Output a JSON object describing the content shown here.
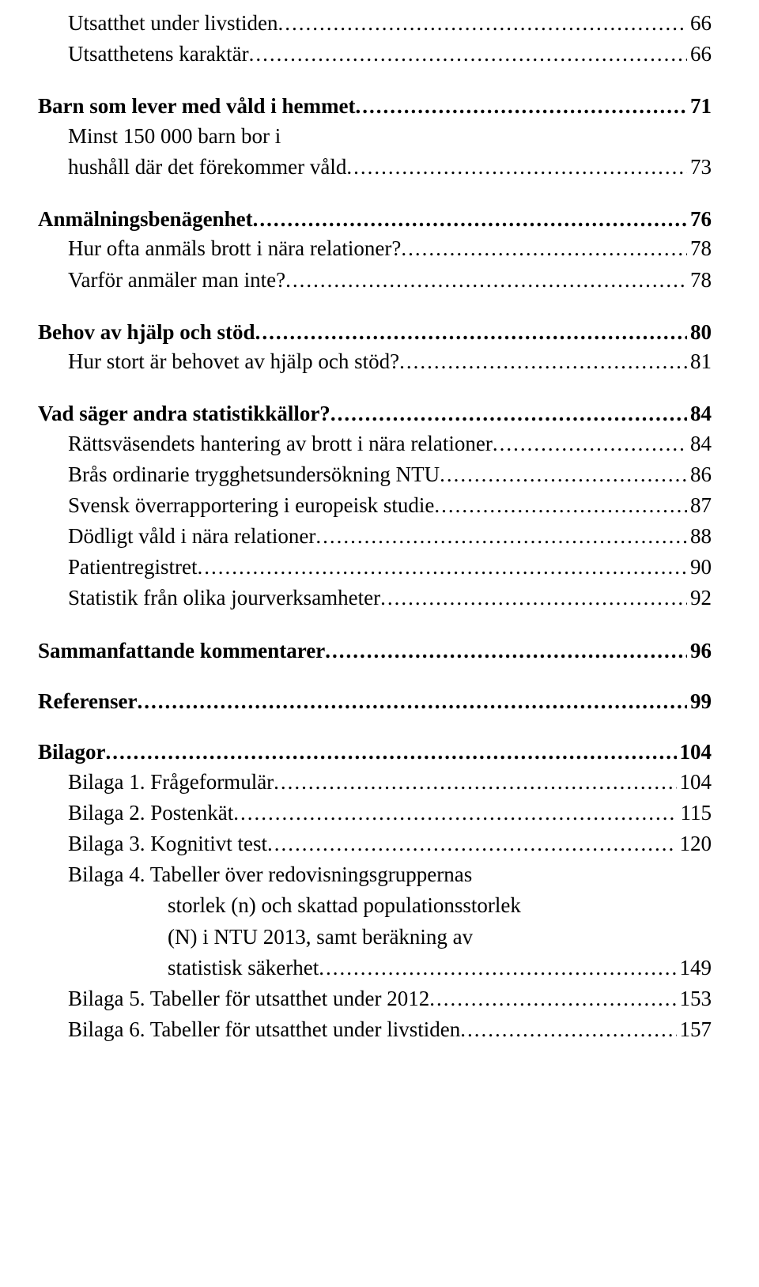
{
  "entries": [
    {
      "cls": "level2",
      "text": "Utsatthet under livstiden",
      "page": "66",
      "first": true
    },
    {
      "cls": "level2",
      "text": "Utsatthetens karaktär",
      "page": "66"
    },
    {
      "cls": "level1",
      "text": "Barn som lever med våld i hemmet",
      "page": "71"
    },
    {
      "cls": "level2",
      "text": "Minst 150 000 barn bor i",
      "page": null
    },
    {
      "cls": "wrap-line",
      "text": "hushåll där det förekommer våld",
      "page": "73"
    },
    {
      "cls": "level1",
      "text": "Anmälningsbenägenhet",
      "page": "76"
    },
    {
      "cls": "level2",
      "text": "Hur ofta anmäls brott i nära relationer?",
      "page": "78"
    },
    {
      "cls": "level2",
      "text": "Varför anmäler man inte?",
      "page": "78"
    },
    {
      "cls": "level1",
      "text": "Behov av hjälp och stöd",
      "page": "80"
    },
    {
      "cls": "level2",
      "text": "Hur stort är behovet av hjälp och stöd?",
      "page": "81"
    },
    {
      "cls": "level1",
      "text": "Vad säger andra statistikkällor?",
      "page": "84"
    },
    {
      "cls": "level2",
      "text": "Rättsväsendets hantering av brott i nära relationer",
      "page": "84"
    },
    {
      "cls": "level2",
      "text": "Brås ordinarie trygghetsundersökning NTU",
      "page": "86"
    },
    {
      "cls": "level2",
      "text": "Svensk överrapportering i europeisk studie",
      "page": "87"
    },
    {
      "cls": "level2",
      "text": "Dödligt våld i nära relationer",
      "page": "88"
    },
    {
      "cls": "level2",
      "text": "Patientregistret",
      "page": "90"
    },
    {
      "cls": "level2",
      "text": "Statistik från olika jourverksamheter",
      "page": "92"
    },
    {
      "cls": "level1",
      "text": "Sammanfattande kommentarer",
      "page": "96"
    },
    {
      "cls": "level1",
      "text": "Referenser",
      "page": "99"
    },
    {
      "cls": "level1",
      "text": "Bilagor",
      "page": "104"
    },
    {
      "cls": "level2",
      "text": "Bilaga 1. Frågeformulär",
      "page": "104"
    },
    {
      "cls": "level2",
      "text": "Bilaga 2. Postenkät",
      "page": "115"
    },
    {
      "cls": "level2",
      "text": "Bilaga 3. Kognitivt test",
      "page": "120"
    },
    {
      "cls": "level2",
      "text": "Bilaga 4. Tabeller över redovisningsgruppernas",
      "page": null
    },
    {
      "cls": "bilaga-wrap",
      "text": "storlek (n) och skattad populationsstorlek",
      "page": null
    },
    {
      "cls": "bilaga-wrap",
      "text": "(N) i NTU 2013, samt beräkning av",
      "page": null
    },
    {
      "cls": "bilaga-wrap",
      "text": "statistisk säkerhet",
      "page": "149"
    },
    {
      "cls": "level2",
      "text": "Bilaga 5. Tabeller för utsatthet under 2012",
      "page": "153"
    },
    {
      "cls": "level2",
      "text": "Bilaga 6. Tabeller för utsatthet under livstiden",
      "page": "157"
    }
  ]
}
